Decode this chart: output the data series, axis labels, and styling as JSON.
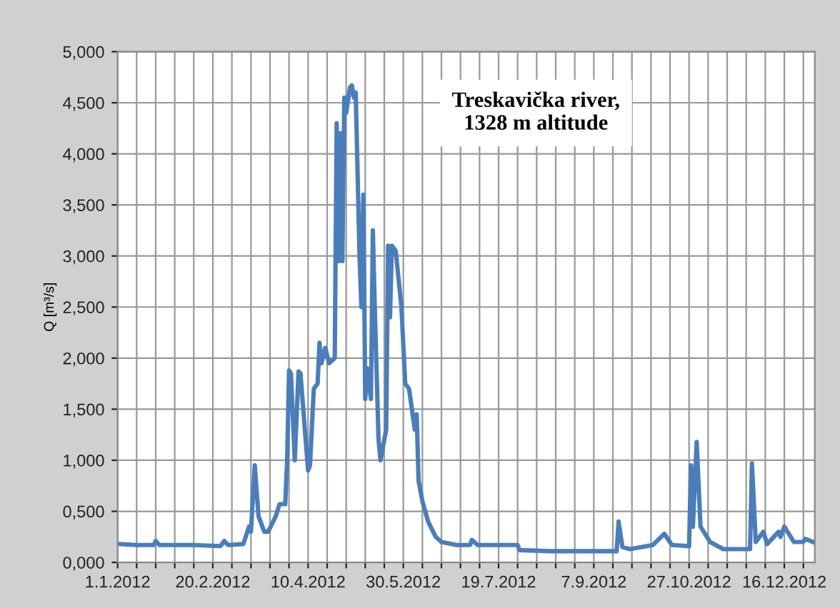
{
  "chart_data": {
    "type": "line",
    "ylabel": "Q [m³/s]",
    "annotations": [
      "Treskavička river,\n1328 m altitude"
    ],
    "grid": true,
    "marker": "none",
    "line_style": "solid",
    "xlim": [
      "2012-01-01",
      "2013-01-01"
    ],
    "ylim": [
      0,
      5
    ],
    "yticks": [
      {
        "value": 0,
        "label": "0,000"
      },
      {
        "value": 0.5,
        "label": "0,500"
      },
      {
        "value": 1,
        "label": "1,000"
      },
      {
        "value": 1.5,
        "label": "1,500"
      },
      {
        "value": 2,
        "label": "2,000"
      },
      {
        "value": 2.5,
        "label": "2,500"
      },
      {
        "value": 3,
        "label": "3,000"
      },
      {
        "value": 3.5,
        "label": "3,500"
      },
      {
        "value": 4,
        "label": "4,000"
      },
      {
        "value": 4.5,
        "label": "4,500"
      },
      {
        "value": 5,
        "label": "5,000"
      }
    ],
    "xticks": [
      {
        "value": "2012-01-01",
        "label": "1.1.2012"
      },
      {
        "value": "2012-01-11",
        "label": null
      },
      {
        "value": "2012-01-21",
        "label": null
      },
      {
        "value": "2012-01-31",
        "label": null
      },
      {
        "value": "2012-02-10",
        "label": null
      },
      {
        "value": "2012-02-20",
        "label": "20.2.2012"
      },
      {
        "value": "2012-03-01",
        "label": null
      },
      {
        "value": "2012-03-11",
        "label": null
      },
      {
        "value": "2012-03-21",
        "label": null
      },
      {
        "value": "2012-03-31",
        "label": null
      },
      {
        "value": "2012-04-10",
        "label": "10.4.2012"
      },
      {
        "value": "2012-04-20",
        "label": null
      },
      {
        "value": "2012-04-30",
        "label": null
      },
      {
        "value": "2012-05-10",
        "label": null
      },
      {
        "value": "2012-05-20",
        "label": null
      },
      {
        "value": "2012-05-30",
        "label": "30.5.2012"
      },
      {
        "value": "2012-06-09",
        "label": null
      },
      {
        "value": "2012-06-19",
        "label": null
      },
      {
        "value": "2012-06-29",
        "label": null
      },
      {
        "value": "2012-07-09",
        "label": null
      },
      {
        "value": "2012-07-19",
        "label": "19.7.2012"
      },
      {
        "value": "2012-07-29",
        "label": null
      },
      {
        "value": "2012-08-08",
        "label": null
      },
      {
        "value": "2012-08-18",
        "label": null
      },
      {
        "value": "2012-08-28",
        "label": null
      },
      {
        "value": "2012-09-07",
        "label": "7.9.2012"
      },
      {
        "value": "2012-09-17",
        "label": null
      },
      {
        "value": "2012-09-27",
        "label": null
      },
      {
        "value": "2012-10-07",
        "label": null
      },
      {
        "value": "2012-10-17",
        "label": null
      },
      {
        "value": "2012-10-27",
        "label": "27.10.2012"
      },
      {
        "value": "2012-11-06",
        "label": null
      },
      {
        "value": "2012-11-16",
        "label": null
      },
      {
        "value": "2012-11-26",
        "label": null
      },
      {
        "value": "2012-12-06",
        "label": null
      },
      {
        "value": "2012-12-16",
        "label": "16.12.2012"
      },
      {
        "value": "2012-12-26",
        "label": null
      }
    ],
    "series": [
      {
        "color": "#4a7ebb",
        "x": [
          "2012-01-01",
          "2012-01-11",
          "2012-01-20",
          "2012-01-21",
          "2012-01-23",
          "2012-02-10",
          "2012-02-24",
          "2012-02-26",
          "2012-02-28",
          "2012-03-07",
          "2012-03-10",
          "2012-03-11",
          "2012-03-13",
          "2012-03-15",
          "2012-03-18",
          "2012-03-20",
          "2012-03-24",
          "2012-03-26",
          "2012-03-29",
          "2012-03-30",
          "2012-03-31",
          "2012-04-01",
          "2012-04-03",
          "2012-04-05",
          "2012-04-06",
          "2012-04-10",
          "2012-04-11",
          "2012-04-13",
          "2012-04-15",
          "2012-04-16",
          "2012-04-17",
          "2012-04-19",
          "2012-04-21",
          "2012-04-24",
          "2012-04-25",
          "2012-04-26",
          "2012-04-27",
          "2012-04-28",
          "2012-04-29",
          "2012-04-30",
          "2012-05-02",
          "2012-05-03",
          "2012-05-04",
          "2012-05-05",
          "2012-05-07",
          "2012-05-08",
          "2012-05-09",
          "2012-05-10",
          "2012-05-11",
          "2012-05-13",
          "2012-05-14",
          "2012-05-15",
          "2012-05-17",
          "2012-05-18",
          "2012-05-21",
          "2012-05-22",
          "2012-05-23",
          "2012-05-24",
          "2012-05-26",
          "2012-05-29",
          "2012-05-31",
          "2012-06-02",
          "2012-06-05",
          "2012-06-06",
          "2012-06-07",
          "2012-06-09",
          "2012-06-12",
          "2012-06-16",
          "2012-06-19",
          "2012-06-27",
          "2012-07-04",
          "2012-07-05",
          "2012-07-08",
          "2012-07-29",
          "2012-07-30",
          "2012-08-15",
          "2012-09-19",
          "2012-09-20",
          "2012-09-22",
          "2012-09-26",
          "2012-10-08",
          "2012-10-14",
          "2012-10-18",
          "2012-10-27",
          "2012-10-28",
          "2012-10-29",
          "2012-10-31",
          "2012-11-02",
          "2012-11-07",
          "2012-11-14",
          "2012-11-28",
          "2012-11-29",
          "2012-12-01",
          "2012-12-05",
          "2012-12-07",
          "2012-12-13",
          "2012-12-14",
          "2012-12-16",
          "2012-12-21",
          "2012-12-26",
          "2012-12-27",
          "2012-12-31"
        ],
        "values": [
          0.18,
          0.17,
          0.17,
          0.21,
          0.17,
          0.17,
          0.16,
          0.21,
          0.17,
          0.18,
          0.35,
          0.3,
          0.95,
          0.45,
          0.3,
          0.3,
          0.45,
          0.57,
          0.57,
          1.0,
          1.88,
          1.85,
          1.0,
          1.87,
          1.85,
          0.9,
          0.95,
          1.7,
          1.75,
          2.15,
          1.95,
          2.1,
          1.95,
          2.0,
          4.3,
          2.95,
          4.2,
          2.95,
          4.55,
          4.4,
          4.65,
          4.67,
          4.55,
          4.6,
          3.0,
          2.5,
          3.6,
          1.6,
          1.9,
          1.6,
          3.25,
          2.5,
          1.2,
          1.0,
          1.3,
          3.1,
          2.4,
          3.1,
          3.05,
          2.5,
          1.75,
          1.7,
          1.3,
          1.45,
          0.8,
          0.6,
          0.4,
          0.25,
          0.2,
          0.17,
          0.17,
          0.22,
          0.17,
          0.17,
          0.12,
          0.11,
          0.11,
          0.4,
          0.15,
          0.13,
          0.17,
          0.28,
          0.17,
          0.16,
          0.95,
          0.35,
          1.18,
          0.35,
          0.2,
          0.13,
          0.13,
          0.97,
          0.2,
          0.3,
          0.18,
          0.3,
          0.25,
          0.35,
          0.2,
          0.2,
          0.23,
          0.2
        ]
      }
    ]
  }
}
